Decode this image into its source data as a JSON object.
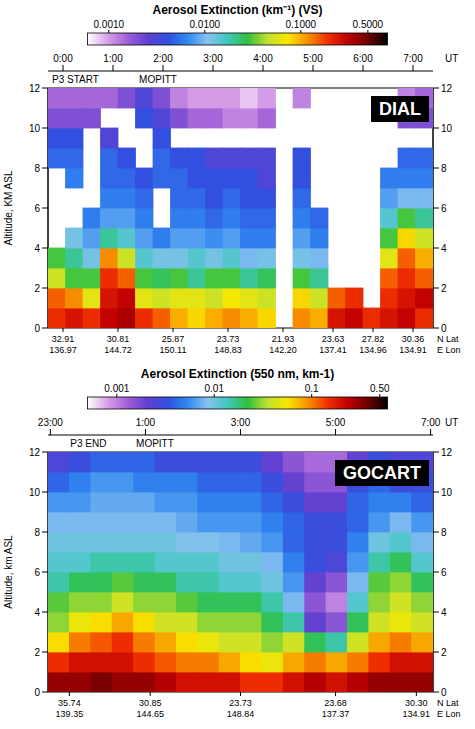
{
  "chart_data": [
    {
      "type": "heatmap",
      "title": "Aerosol Extinction (km⁻¹) (VS)",
      "panel_label": "DIAL",
      "x_label": "UT",
      "y_label": "Altitude, KM ASL",
      "xlim": [
        -0.3,
        7.4
      ],
      "xticks": [
        {
          "value": 0,
          "label": "0:00"
        },
        {
          "value": 1,
          "label": "1:00"
        },
        {
          "value": 2,
          "label": "2:00"
        },
        {
          "value": 3,
          "label": "3:00"
        },
        {
          "value": 4,
          "label": "4:00"
        },
        {
          "value": 5,
          "label": "5:00"
        },
        {
          "value": 6,
          "label": "6:00"
        },
        {
          "value": 7,
          "label": "7:00"
        }
      ],
      "ylim": [
        0,
        12
      ],
      "yticks": [
        0,
        2,
        4,
        6,
        8,
        10,
        12
      ],
      "x": [
        -0.125,
        0.225,
        0.575,
        0.925,
        1.275,
        1.625,
        1.975,
        2.325,
        2.675,
        3.025,
        3.375,
        3.725,
        4.075,
        4.425,
        4.775,
        5.125,
        5.475,
        5.825,
        6.175,
        6.525,
        6.875,
        7.225
      ],
      "y": [
        0.5,
        1.5,
        2.5,
        3.5,
        4.5,
        5.5,
        6.5,
        7.5,
        8.5,
        9.5,
        10.5,
        11.5
      ],
      "values_by_x": [
        [
          0.2,
          0.15,
          0.05,
          0.03,
          null,
          null,
          null,
          null,
          0.005,
          0.004,
          0.002,
          0.0015
        ],
        [
          0.25,
          0.12,
          0.03,
          0.02,
          0.012,
          null,
          null,
          0.006,
          0.005,
          0.004,
          0.002,
          0.0015
        ],
        [
          0.2,
          0.06,
          0.03,
          0.012,
          0.008,
          0.006,
          null,
          null,
          null,
          null,
          0.002,
          0.0015
        ],
        [
          0.3,
          0.25,
          0.2,
          0.12,
          0.02,
          0.008,
          0.006,
          0.005,
          0.005,
          0.003,
          null,
          0.0015
        ],
        [
          0.35,
          0.3,
          0.15,
          0.05,
          0.015,
          0.008,
          0.006,
          0.005,
          0.004,
          null,
          null,
          0.002
        ],
        [
          0.2,
          0.06,
          0.03,
          0.015,
          0.008,
          0.006,
          0.005,
          0.004,
          null,
          null,
          0.004,
          0.003
        ],
        [
          0.15,
          0.05,
          0.025,
          0.012,
          0.006,
          null,
          null,
          0.005,
          0.005,
          0.004,
          0.003,
          0.002
        ],
        [
          0.1,
          0.06,
          0.03,
          0.012,
          0.008,
          0.006,
          0.005,
          0.005,
          0.004,
          null,
          0.002,
          0.0012
        ],
        [
          0.08,
          0.06,
          0.02,
          0.015,
          0.008,
          0.006,
          0.005,
          0.004,
          0.004,
          null,
          0.0015,
          0.001
        ],
        [
          0.1,
          0.05,
          0.03,
          0.012,
          0.007,
          0.005,
          0.004,
          0.004,
          0.003,
          null,
          0.0015,
          0.001
        ],
        [
          0.12,
          0.07,
          0.03,
          0.015,
          0.008,
          0.006,
          0.005,
          0.004,
          0.003,
          null,
          0.0012,
          0.001
        ],
        [
          0.1,
          0.06,
          0.02,
          0.01,
          0.006,
          0.005,
          0.004,
          0.004,
          0.003,
          null,
          0.0012,
          0.0008
        ],
        [
          0.08,
          0.05,
          0.025,
          0.012,
          0.006,
          0.005,
          0.004,
          0.003,
          0.003,
          null,
          0.0015,
          0.001
        ],
        [
          null,
          null,
          null,
          null,
          null,
          null,
          null,
          null,
          null,
          null,
          null,
          null
        ],
        [
          0.12,
          0.08,
          0.03,
          0.012,
          0.008,
          0.006,
          0.005,
          0.004,
          0.004,
          null,
          null,
          0.0012
        ],
        [
          0.1,
          0.05,
          0.02,
          0.01,
          0.006,
          0.005,
          null,
          null,
          null,
          null,
          null,
          null
        ],
        [
          0.25,
          0.15,
          null,
          null,
          null,
          null,
          null,
          null,
          null,
          null,
          null,
          null
        ],
        [
          0.3,
          0.2,
          null,
          null,
          null,
          null,
          null,
          null,
          null,
          null,
          null,
          null
        ],
        [
          0.2,
          null,
          null,
          null,
          null,
          null,
          null,
          null,
          null,
          null,
          null,
          null
        ],
        [
          0.25,
          0.2,
          0.15,
          0.06,
          0.03,
          0.015,
          0.008,
          0.006,
          null,
          null,
          null,
          null
        ],
        [
          0.3,
          0.25,
          0.2,
          0.15,
          0.08,
          0.03,
          0.01,
          0.006,
          0.005,
          null,
          0.002,
          0.0012
        ],
        [
          0.2,
          0.3,
          0.15,
          0.1,
          0.05,
          0.02,
          0.01,
          0.006,
          0.005,
          null,
          0.002,
          0.0015
        ]
      ],
      "colorbar": {
        "range": [
          0.0006,
          0.8
        ],
        "ticks": [
          {
            "value": 0.001,
            "label": "0.0010"
          },
          {
            "value": 0.01,
            "label": "0.0100"
          },
          {
            "value": 0.1,
            "label": "0.1000"
          },
          {
            "value": 0.5,
            "label": "0.5000"
          }
        ],
        "colors": [
          "#ffffff",
          "#d8a0e8",
          "#a060d8",
          "#6040d0",
          "#3050e0",
          "#3088f0",
          "#88c0f0",
          "#40c8c0",
          "#30c040",
          "#c0e030",
          "#f8e800",
          "#f89000",
          "#f03000",
          "#c00000",
          "#700000",
          "#000000"
        ]
      },
      "annotations": [
        {
          "text": "P3 START",
          "x": 0.25
        },
        {
          "text": "MOPITT",
          "x": 1.9
        }
      ],
      "track": {
        "x": [
          0,
          1.1,
          2.2,
          3.3,
          4.4,
          5.4,
          6.2,
          7.0
        ],
        "rows": [
          {
            "name": "N Lat",
            "labels": [
              "32.91",
              "30.81",
              "25.87",
              "23.73",
              "21.93",
              "23.63",
              "27.82",
              "30.36"
            ]
          },
          {
            "name": "E Lon",
            "labels": [
              "136.97",
              "144.72",
              "150.11",
              "148.83",
              "142.20",
              "137.41",
              "134.96",
              "134.91"
            ]
          }
        ]
      }
    },
    {
      "type": "heatmap",
      "title": "Aerosol Extinction (550 nm, km-1)",
      "panel_label": "GOCART",
      "x_label": "UT",
      "y_label": "Altitude, km ASL",
      "xlim": [
        -1.05,
        7.05
      ],
      "xticks": [
        {
          "value": -1,
          "label": "23:00"
        },
        {
          "value": 1,
          "label": "1:00"
        },
        {
          "value": 3,
          "label": "3:00"
        },
        {
          "value": 5,
          "label": "5:00"
        },
        {
          "value": 7,
          "label": "7:00"
        }
      ],
      "ylim": [
        0,
        12
      ],
      "yticks": [
        0,
        2,
        4,
        6,
        8,
        10,
        12
      ],
      "x": [
        -0.825,
        -0.375,
        0.075,
        0.525,
        0.975,
        1.425,
        1.875,
        2.325,
        2.775,
        3.225,
        3.675,
        4.125,
        4.575,
        5.025,
        5.475,
        5.925,
        6.375,
        6.825
      ],
      "y": [
        0.5,
        1.5,
        2.5,
        3.5,
        4.5,
        5.5,
        6.5,
        7.5,
        8.5,
        9.5,
        10.5,
        11.5
      ],
      "values_by_x": [
        [
          0.3,
          0.15,
          0.06,
          0.03,
          0.025,
          0.015,
          0.012,
          0.01,
          0.008,
          0.006,
          0.004,
          0.0025
        ],
        [
          0.3,
          0.2,
          0.1,
          0.05,
          0.03,
          0.02,
          0.012,
          0.01,
          0.008,
          0.006,
          0.005,
          0.003
        ],
        [
          0.35,
          0.2,
          0.12,
          0.06,
          0.03,
          0.02,
          0.015,
          0.01,
          0.008,
          0.007,
          0.006,
          0.004
        ],
        [
          0.3,
          0.2,
          0.15,
          0.08,
          0.04,
          0.025,
          0.015,
          0.01,
          0.008,
          0.007,
          0.006,
          0.004
        ],
        [
          0.3,
          0.15,
          0.1,
          0.06,
          0.03,
          0.02,
          0.015,
          0.01,
          0.008,
          0.007,
          0.005,
          0.004
        ],
        [
          0.25,
          0.12,
          0.08,
          0.04,
          0.03,
          0.02,
          0.012,
          0.01,
          0.008,
          0.006,
          0.005,
          0.003
        ],
        [
          0.2,
          0.1,
          0.06,
          0.04,
          0.025,
          0.015,
          0.012,
          0.009,
          0.007,
          0.006,
          0.005,
          0.003
        ],
        [
          0.2,
          0.1,
          0.05,
          0.03,
          0.02,
          0.015,
          0.012,
          0.009,
          0.006,
          0.005,
          0.004,
          0.003
        ],
        [
          0.2,
          0.08,
          0.04,
          0.03,
          0.02,
          0.012,
          0.01,
          0.008,
          0.006,
          0.005,
          0.004,
          0.003
        ],
        [
          0.15,
          0.06,
          0.04,
          0.03,
          0.02,
          0.012,
          0.01,
          0.007,
          0.006,
          0.005,
          0.004,
          0.003
        ],
        [
          0.15,
          0.05,
          0.03,
          0.02,
          0.015,
          0.01,
          0.008,
          0.006,
          0.005,
          0.004,
          0.003,
          0.002
        ],
        [
          0.2,
          0.08,
          0.04,
          0.015,
          0.008,
          0.006,
          0.005,
          0.004,
          0.004,
          0.003,
          0.002,
          0.0015
        ],
        [
          0.25,
          0.1,
          0.02,
          0.002,
          0.0015,
          0.002,
          0.003,
          0.003,
          0.003,
          0.002,
          0.0015,
          0.0012
        ],
        [
          0.2,
          0.08,
          0.015,
          0.0015,
          0.001,
          0.0015,
          0.0025,
          0.003,
          0.003,
          0.002,
          0.0015,
          0.0012
        ],
        [
          0.25,
          0.1,
          0.04,
          0.02,
          0.012,
          0.008,
          0.006,
          0.005,
          0.004,
          0.004,
          0.003,
          0.002
        ],
        [
          0.3,
          0.15,
          0.08,
          0.04,
          0.03,
          0.025,
          0.015,
          0.01,
          0.006,
          0.005,
          0.004,
          0.003
        ],
        [
          0.3,
          0.2,
          0.1,
          0.05,
          0.04,
          0.03,
          0.02,
          0.012,
          0.008,
          0.005,
          0.003,
          0.0025
        ],
        [
          0.3,
          0.2,
          0.08,
          0.04,
          0.03,
          0.02,
          0.012,
          0.008,
          0.006,
          0.004,
          0.003,
          0.0025
        ]
      ],
      "colorbar": {
        "range": [
          0.0005,
          0.6
        ],
        "ticks": [
          0.001,
          0.01,
          0.1,
          {
            "value": 0.5,
            "label": "0.50"
          }
        ],
        "colors": [
          "#ffffff",
          "#d8a0e8",
          "#a060d8",
          "#6040d0",
          "#3050e0",
          "#3088f0",
          "#88c0f0",
          "#40c8c0",
          "#30c040",
          "#c0e030",
          "#f8e800",
          "#f89000",
          "#f03000",
          "#c00000",
          "#700000",
          "#000000"
        ]
      },
      "annotations": [
        {
          "text": "P3 END",
          "x": -0.2
        },
        {
          "text": "MOPITT",
          "x": 1.2
        }
      ],
      "track": {
        "x": [
          -0.6,
          1.1,
          3.0,
          5.0,
          6.7
        ],
        "rows": [
          {
            "name": "N Lat",
            "labels": [
              "35.74",
              "30.85",
              "23.73",
              "23.68",
              "30.30"
            ]
          },
          {
            "name": "E Lon",
            "labels": [
              "139.35",
              "144.65",
              "148.84",
              "137.37",
              "134.91"
            ]
          }
        ]
      }
    }
  ]
}
